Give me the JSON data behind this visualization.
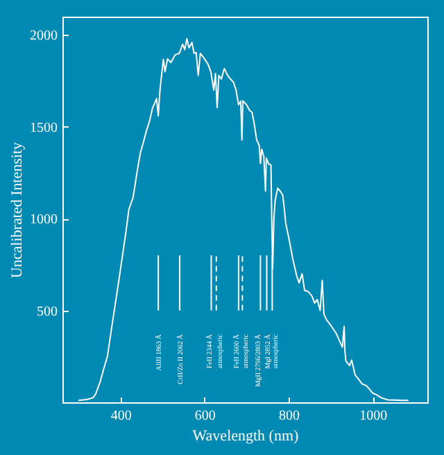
{
  "chart_data": {
    "type": "line",
    "xlabel": "Wavelength (nm)",
    "ylabel": "Uncalibrated Intensity",
    "xlim": [
      262,
      1130
    ],
    "ylim": [
      0,
      2100
    ],
    "xticks": [
      400,
      600,
      800,
      1000
    ],
    "yticks": [
      500,
      1000,
      1500,
      2000
    ],
    "grid": false,
    "marker": "none",
    "series": [
      {
        "color": "#ffffff",
        "line_style": "solid",
        "x": [
          300,
          320,
          335,
          341,
          352,
          360,
          369,
          380,
          390,
          397,
          405,
          413,
          420,
          430,
          440,
          447,
          455,
          462,
          469,
          476,
          486,
          490,
          494,
          502,
          506,
          512,
          520,
          530,
          540,
          548,
          553,
          558,
          563,
          570,
          575,
          580,
          585,
          590,
          600,
          608,
          615,
          622,
          626,
          630,
          634,
          640,
          647,
          655,
          662,
          669,
          675,
          681,
          686,
          689,
          691,
          700,
          707,
          713,
          718,
          724,
          730,
          733,
          736,
          741,
          745,
          747,
          752,
          758,
          760,
          762,
          765,
          768,
          774,
          780,
          786,
          790,
          793,
          802,
          810,
          819,
          825,
          832,
          838,
          847,
          855,
          862,
          868,
          875,
          880,
          884,
          890,
          900,
          913,
          922,
          928,
          932,
          934,
          936,
          945,
          950,
          958,
          965,
          975,
          985,
          991,
          1000,
          1010,
          1020,
          1036,
          1050,
          1070,
          1085
        ],
        "values": [
          10,
          15,
          25,
          45,
          113,
          180,
          250,
          420,
          570,
          677,
          800,
          927,
          1050,
          1115,
          1260,
          1354,
          1420,
          1480,
          1529,
          1600,
          1654,
          1560,
          1700,
          1867,
          1800,
          1870,
          1850,
          1892,
          1900,
          1950,
          1920,
          1980,
          1930,
          1960,
          1900,
          1905,
          1780,
          1900,
          1870,
          1842,
          1800,
          1700,
          1790,
          1604,
          1780,
          1760,
          1817,
          1780,
          1760,
          1742,
          1700,
          1620,
          1640,
          1429,
          1642,
          1620,
          1590,
          1579,
          1520,
          1429,
          1400,
          1300,
          1378,
          1340,
          1150,
          1330,
          1300,
          1291,
          980,
          730,
          1000,
          1100,
          1166,
          1150,
          1128,
          1050,
          977,
          877,
          780,
          690,
          650,
          700,
          610,
          602,
          580,
          540,
          560,
          500,
          664,
          480,
          450,
          420,
          376,
          330,
          300,
          414,
          280,
          226,
          200,
          230,
          150,
          130,
          100,
          90,
          75,
          50,
          40,
          25,
          13,
          12,
          10,
          10
        ]
      },
      {
        "color": "#ffffff",
        "line_style": "solid",
        "x": [
          490,
          490
        ],
        "values": [
          500,
          800
        ]
      },
      {
        "color": "#ffffff",
        "line_style": "solid",
        "x": [
          541,
          541
        ],
        "values": [
          500,
          800
        ]
      },
      {
        "color": "#ffffff",
        "line_style": "solid",
        "x": [
          616,
          616
        ],
        "values": [
          500,
          800
        ]
      },
      {
        "color": "#ffffff",
        "line_style": "dashed",
        "x": [
          628,
          628
        ],
        "values": [
          500,
          800
        ]
      },
      {
        "color": "#ffffff",
        "line_style": "solid",
        "x": [
          681,
          681
        ],
        "values": [
          500,
          800
        ]
      },
      {
        "color": "#ffffff",
        "line_style": "dashed",
        "x": [
          690,
          690
        ],
        "values": [
          500,
          800
        ]
      },
      {
        "color": "#ffffff",
        "line_style": "solid",
        "x": [
          733,
          733
        ],
        "values": [
          500,
          800
        ]
      },
      {
        "color": "#ffffff",
        "line_style": "solid",
        "x": [
          748,
          748
        ],
        "values": [
          500,
          800
        ]
      },
      {
        "color": "#ffffff",
        "line_style": "solid",
        "x": [
          761,
          761
        ],
        "values": [
          500,
          800
        ]
      }
    ],
    "annotations": [
      "AlIII 1863 Å",
      "CrII/Zn II 2062 Å",
      "FeII 2344 Å",
      "atmospheric",
      "FeII 2600 Å",
      "atmospheric",
      "MgII 2796/2803 Å",
      "MgI 2852 Å",
      "atmospheric"
    ]
  }
}
